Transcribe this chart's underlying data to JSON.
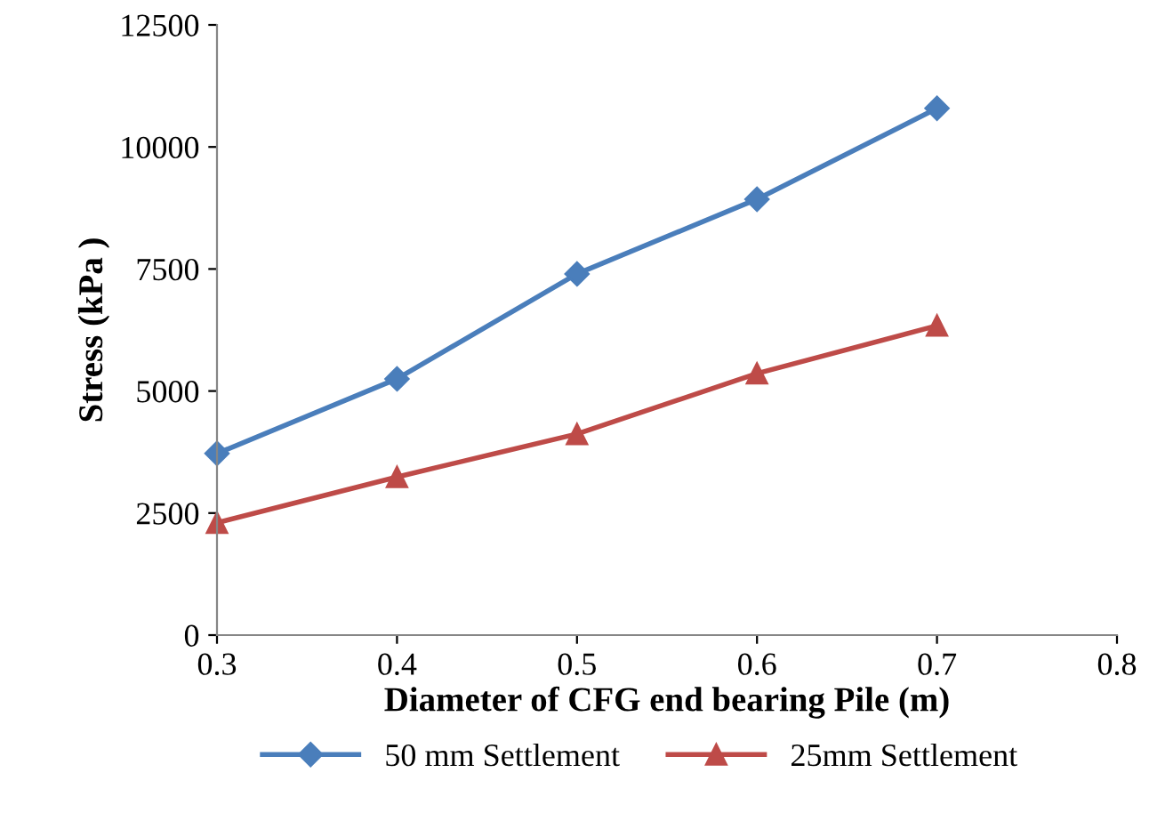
{
  "chart_data": {
    "type": "line",
    "xlabel": "Diameter of CFG end bearing Pile (m)",
    "ylabel": "Stress (kPa )",
    "x": [
      0.3,
      0.4,
      0.5,
      0.6,
      0.7
    ],
    "series": [
      {
        "name": "50 mm Settlement",
        "color": "#4a7ebb",
        "values": [
          3720,
          5250,
          7400,
          8930,
          10790
        ],
        "marker": "diamond"
      },
      {
        "name": "25mm Settlement",
        "color": "#be4b48",
        "values": [
          2300,
          3240,
          4120,
          5360,
          6340
        ],
        "marker": "triangle"
      }
    ],
    "xlim": [
      0.3,
      0.8
    ],
    "xticks": [
      0.3,
      0.4,
      0.5,
      0.6,
      0.7,
      0.8
    ],
    "ylim": [
      0,
      12500
    ],
    "yticks": [
      0,
      2500,
      5000,
      7500,
      10000,
      12500
    ],
    "grid": false,
    "legend": "bottom",
    "line_style": "solid"
  }
}
